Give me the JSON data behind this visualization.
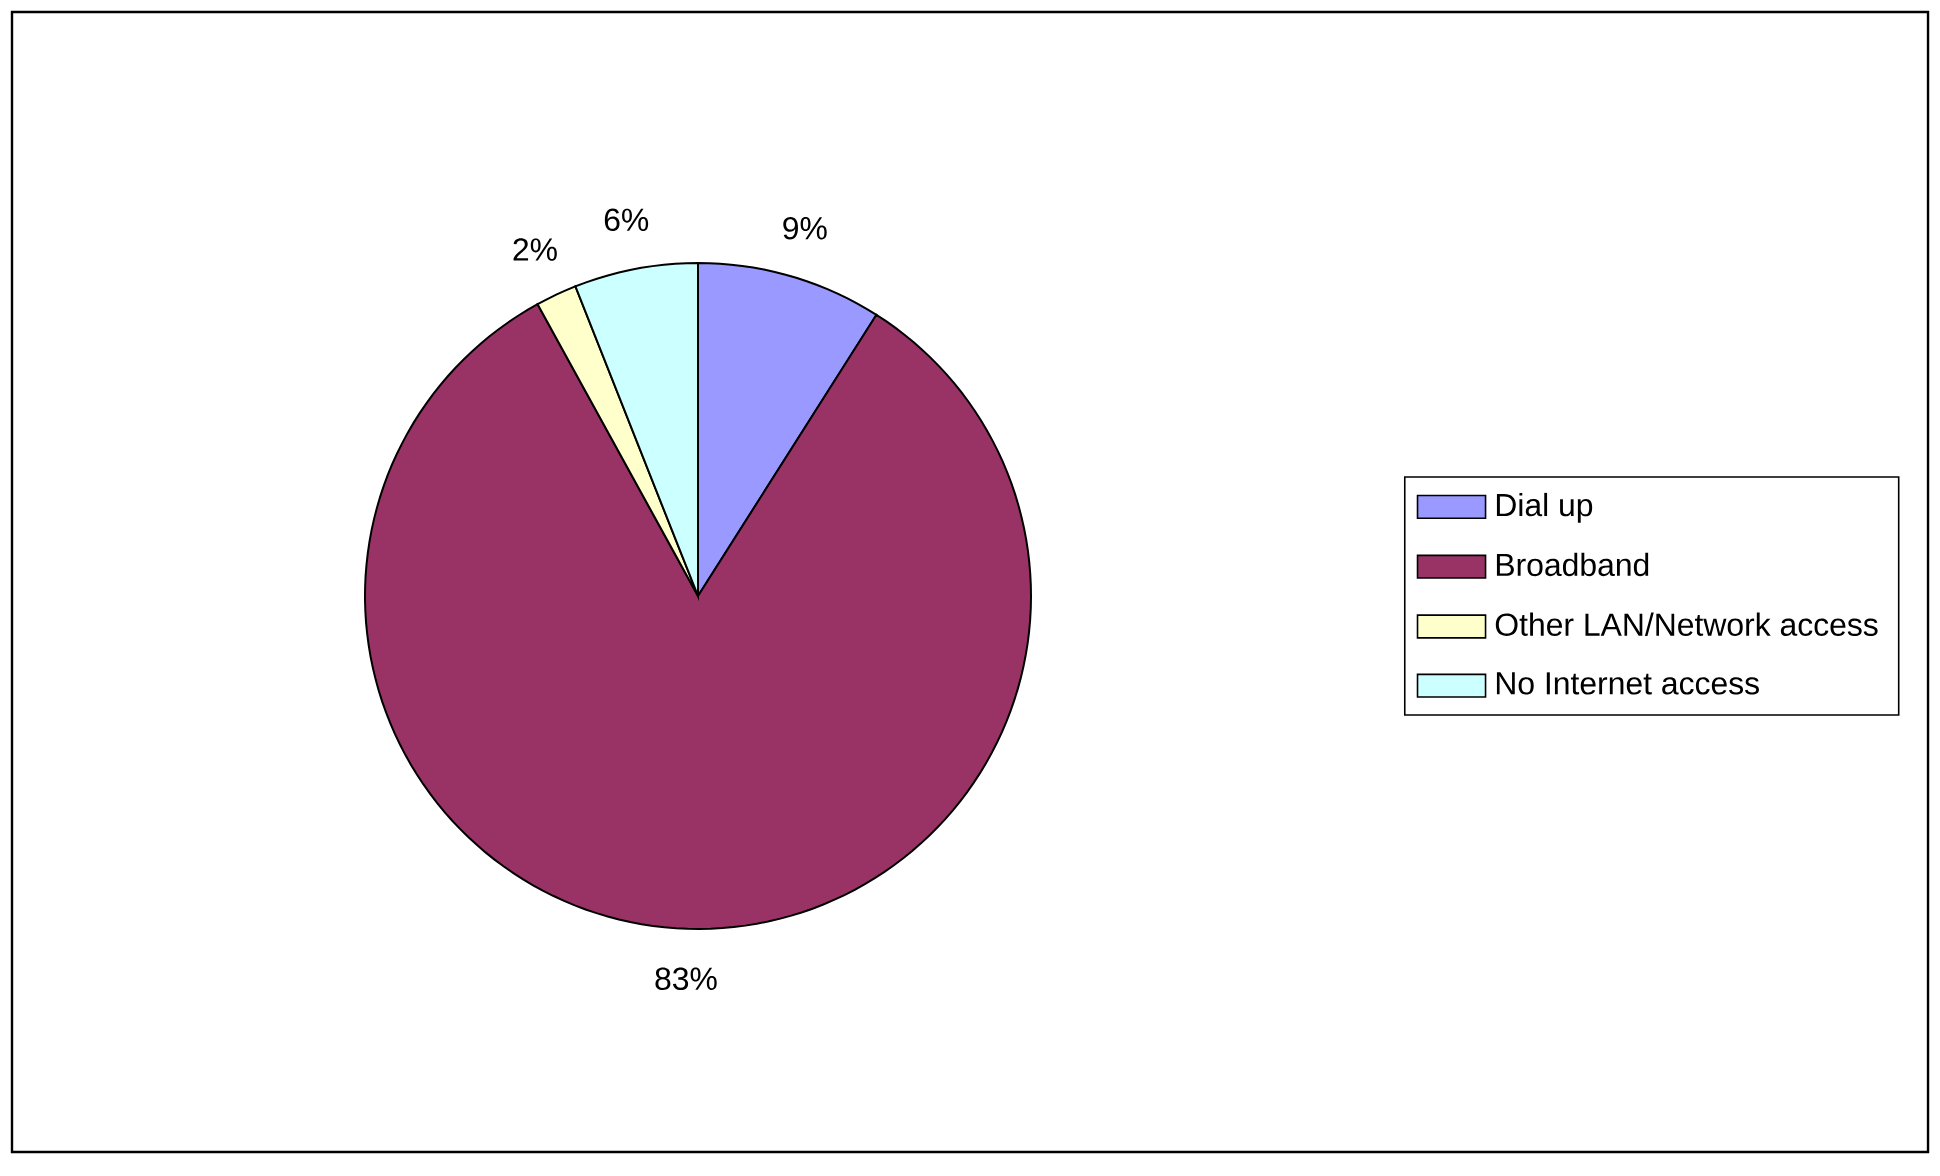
{
  "chart_data": {
    "type": "pie",
    "categories": [
      "Dial up",
      "Broadband",
      "Other LAN/Network access",
      "No Internet access"
    ],
    "values": [
      9,
      83,
      2,
      6
    ],
    "value_labels": [
      "9%",
      "83%",
      "2%",
      "6%"
    ],
    "colors": [
      "#9999ff",
      "#993366",
      "#ffffcc",
      "#ccffff"
    ],
    "legend": "right"
  }
}
